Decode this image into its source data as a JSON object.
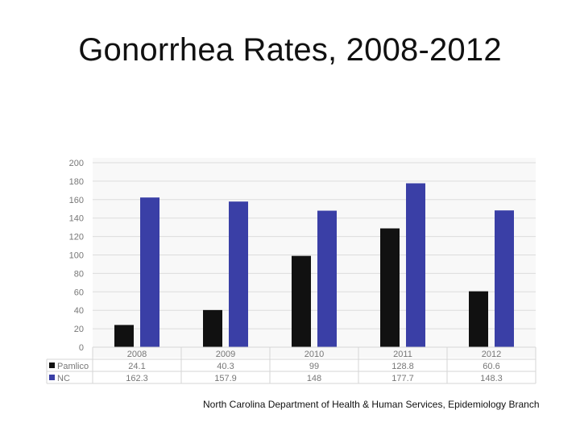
{
  "title": "Gonorrhea Rates, 2008-2012",
  "source": "North Carolina Department of Health & Human Services, Epidemiology Branch",
  "chart_data": {
    "type": "bar",
    "title": "",
    "xlabel": "",
    "ylabel": "",
    "ylim": [
      0,
      200
    ],
    "yticks": [
      0,
      20,
      40,
      60,
      80,
      100,
      120,
      140,
      160,
      180,
      200
    ],
    "grid": true,
    "legend": "data-table-left",
    "categories": [
      "2008",
      "2009",
      "2010",
      "2011",
      "2012"
    ],
    "series": [
      {
        "name": "Pamlico",
        "color": "#111111",
        "values": [
          24.1,
          40.3,
          99,
          128.8,
          60.6
        ],
        "labels": [
          "24.1",
          "40.3",
          "99",
          "128.8",
          "60.6"
        ]
      },
      {
        "name": "NC",
        "color": "#3a3fa6",
        "values": [
          162.3,
          157.9,
          148,
          177.7,
          148.3
        ],
        "labels": [
          "162.3",
          "157.9",
          "148",
          "177.7",
          "148.3"
        ]
      }
    ]
  }
}
